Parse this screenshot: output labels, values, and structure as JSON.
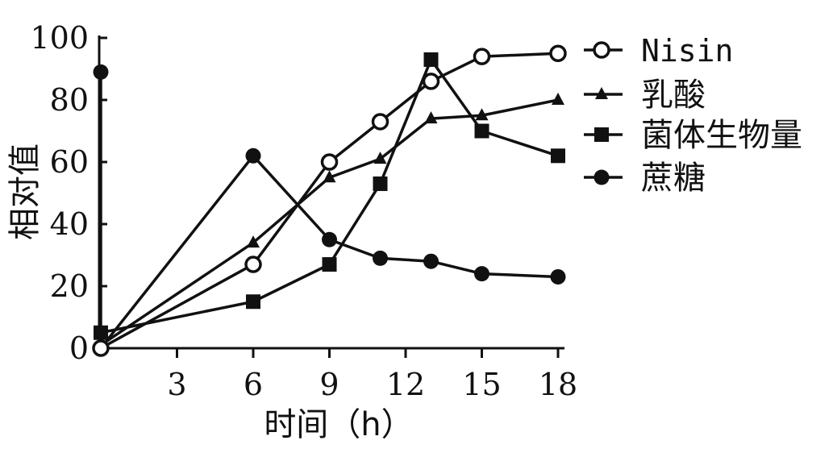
{
  "chart_data": {
    "type": "line",
    "ylabel": "相对值",
    "xlabel": "时间（h）",
    "xlim": [
      0,
      18
    ],
    "ylim": [
      0,
      100
    ],
    "x_ticks": [
      3,
      6,
      9,
      12,
      15,
      18
    ],
    "y_ticks": [
      0,
      20,
      40,
      60,
      80,
      100
    ],
    "grid": false,
    "legend_position": "right",
    "series": [
      {
        "name": "Nisin",
        "marker": "open-circle",
        "points": [
          [
            0,
            0
          ],
          [
            6,
            27
          ],
          [
            9,
            60
          ],
          [
            11,
            73
          ],
          [
            13,
            86
          ],
          [
            15,
            94
          ],
          [
            18,
            95
          ]
        ]
      },
      {
        "name": "乳酸",
        "marker": "triangle",
        "points": [
          [
            0,
            1
          ],
          [
            6,
            34
          ],
          [
            9,
            55
          ],
          [
            11,
            61
          ],
          [
            13,
            74
          ],
          [
            15,
            75
          ],
          [
            18,
            80
          ]
        ]
      },
      {
        "name": "菌体生物量",
        "marker": "square",
        "points": [
          [
            0,
            5
          ],
          [
            6,
            15
          ],
          [
            9,
            27
          ],
          [
            11,
            53
          ],
          [
            13,
            93
          ],
          [
            15,
            70
          ],
          [
            18,
            62
          ]
        ]
      },
      {
        "name": "蔗糖",
        "marker": "filled-circle",
        "points": [
          [
            0,
            89
          ],
          [
            0,
            0
          ],
          [
            6,
            62
          ],
          [
            9,
            35
          ],
          [
            11,
            29
          ],
          [
            13,
            28
          ],
          [
            15,
            24
          ],
          [
            18,
            23
          ]
        ]
      }
    ]
  }
}
